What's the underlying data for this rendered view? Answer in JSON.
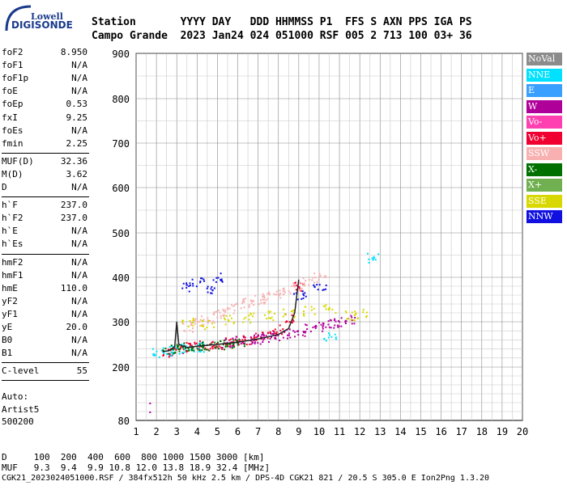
{
  "logo": {
    "brand": "Lowell",
    "name": "DIGISONDE"
  },
  "header": {
    "row1": "Station       YYYY DAY   DDD HHMMSS P1  FFS S AXN PPS IGA PS",
    "row2": "Campo Grande  2023 Jan24 024 051000 RSF 005 2 713 100 03+ 36"
  },
  "params": {
    "group1": [
      {
        "label": "foF2",
        "value": "8.950"
      },
      {
        "label": "foF1",
        "value": "N/A"
      },
      {
        "label": "foF1p",
        "value": "N/A"
      },
      {
        "label": "foE",
        "value": "N/A"
      },
      {
        "label": "foEp",
        "value": "0.53"
      },
      {
        "label": "fxI",
        "value": "9.25"
      },
      {
        "label": "foEs",
        "value": "N/A"
      },
      {
        "label": "fmin",
        "value": "2.25"
      }
    ],
    "group2": [
      {
        "label": "MUF(D)",
        "value": "32.36"
      },
      {
        "label": "M(D)",
        "value": "3.62"
      },
      {
        "label": "D",
        "value": "N/A"
      }
    ],
    "group3": [
      {
        "label": "h`F",
        "value": "237.0"
      },
      {
        "label": "h`F2",
        "value": "237.0"
      },
      {
        "label": "h`E",
        "value": "N/A"
      },
      {
        "label": "h`Es",
        "value": "N/A"
      }
    ],
    "group4": [
      {
        "label": "hmF2",
        "value": "N/A"
      },
      {
        "label": "hmF1",
        "value": "N/A"
      },
      {
        "label": "hmE",
        "value": "110.0"
      },
      {
        "label": "yF2",
        "value": "N/A"
      },
      {
        "label": "yF1",
        "value": "N/A"
      },
      {
        "label": "yE",
        "value": "20.0"
      },
      {
        "label": "B0",
        "value": "N/A"
      },
      {
        "label": "B1",
        "value": "N/A"
      }
    ],
    "group5": [
      {
        "label": "C-level",
        "value": "55"
      }
    ],
    "auto_label": "Auto:",
    "auto_source": "Artist5",
    "auto_version": "500200"
  },
  "legend": [
    {
      "label": "NoVal",
      "color": "#8c8c8c"
    },
    {
      "label": "NNE",
      "color": "#00e0ff"
    },
    {
      "label": "E",
      "color": "#3aa0ff"
    },
    {
      "label": "W",
      "color": "#b0009a"
    },
    {
      "label": "Vo-",
      "color": "#ff40b0"
    },
    {
      "label": "Vo+",
      "color": "#f00030"
    },
    {
      "label": "SSW",
      "color": "#f8b0b0"
    },
    {
      "label": "X-",
      "color": "#007000"
    },
    {
      "label": "X+",
      "color": "#70b050"
    },
    {
      "label": "SSE",
      "color": "#d8d800"
    },
    {
      "label": "NNW",
      "color": "#1010e0"
    }
  ],
  "footer": {
    "row1": "D     100  200  400  600  800 1000 1500 3000 [km]",
    "row2": "MUF   9.3  9.4  9.9 10.8 12.0 13.8 18.9 32.4 [MHz]",
    "row3": "CGK21_2023024051000.RSF / 384fx512h 50 kHz 2.5 km / DPS-4D CGK21 821 / 20.5 S 305.0 E Ion2Png 1.3.20"
  },
  "chart_data": {
    "type": "scatter",
    "title": "",
    "xlabel": "",
    "ylabel": "",
    "xlim": [
      1,
      20
    ],
    "ylim": [
      80,
      900
    ],
    "x_ticks": [
      1,
      2,
      3,
      4,
      5,
      6,
      7,
      8,
      9,
      10,
      11,
      12,
      13,
      14,
      15,
      16,
      17,
      18,
      19,
      20
    ],
    "y_ticks": [
      80,
      200,
      300,
      400,
      500,
      600,
      700,
      800,
      900
    ],
    "grid": true,
    "y_scale": "reciprocal-like",
    "series": [
      {
        "name": "Vo+",
        "x": [
          2.5,
          3.0,
          3.5,
          4.0,
          4.5,
          5.0,
          5.5,
          6.0,
          6.5,
          7.0,
          7.5,
          8.0,
          8.5,
          9.0
        ],
        "y": [
          235,
          240,
          245,
          248,
          250,
          252,
          255,
          258,
          262,
          268,
          275,
          285,
          310,
          380
        ]
      },
      {
        "name": "W",
        "x": [
          5.5,
          6.0,
          6.5,
          7.0,
          7.5,
          8.0,
          8.5,
          9.0,
          9.5,
          10.0,
          10.5,
          11.0,
          11.5
        ],
        "y": [
          255,
          258,
          260,
          263,
          266,
          270,
          275,
          280,
          285,
          290,
          295,
          300,
          305
        ]
      },
      {
        "name": "SSW",
        "x": [
          3.5,
          4.0,
          4.5,
          5.0,
          5.5,
          6.0,
          6.5,
          7.0,
          7.5,
          8.0,
          8.5,
          9.0,
          9.5,
          10.0
        ],
        "y": [
          290,
          300,
          310,
          320,
          330,
          340,
          345,
          350,
          358,
          365,
          372,
          380,
          390,
          400
        ]
      },
      {
        "name": "NNE",
        "x": [
          2.0,
          2.5,
          3.0,
          3.5,
          4.0,
          10.5,
          12.6
        ],
        "y": [
          232,
          236,
          240,
          242,
          245,
          270,
          445
        ]
      },
      {
        "name": "X-",
        "x": [
          2.6,
          3.0,
          3.5,
          4.0,
          4.5,
          5.0,
          5.5,
          6.0
        ],
        "y": [
          240,
          242,
          244,
          246,
          248,
          250,
          252,
          254
        ]
      },
      {
        "name": "SSE",
        "x": [
          3.5,
          4.5,
          5.5,
          6.5,
          7.5,
          8.5,
          9.5,
          10.5,
          11.5,
          12.0
        ],
        "y": [
          300,
          295,
          305,
          310,
          315,
          320,
          325,
          330,
          315,
          320
        ]
      },
      {
        "name": "NNW",
        "x": [
          3.5,
          4.0,
          4.5,
          5.0,
          9.0,
          10.0
        ],
        "y": [
          380,
          390,
          370,
          400,
          360,
          380
        ]
      }
    ],
    "trace": {
      "x": [
        2.3,
        2.6,
        2.9,
        3.0,
        3.1,
        3.5,
        4.0,
        5.0,
        6.0,
        7.0,
        8.0,
        8.5,
        8.8,
        9.0
      ],
      "y": [
        234,
        236,
        245,
        300,
        250,
        243,
        246,
        250,
        255,
        262,
        272,
        285,
        320,
        395
      ]
    }
  }
}
